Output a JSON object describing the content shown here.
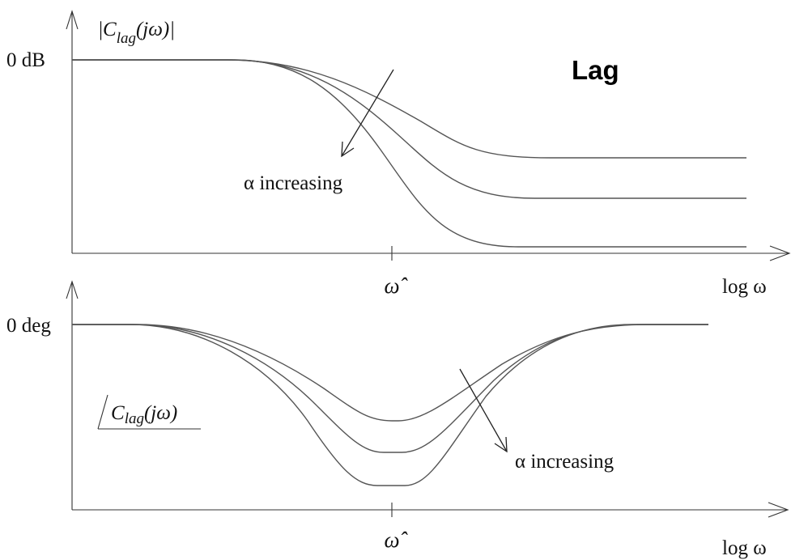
{
  "title": "Lag",
  "magnitude_plot": {
    "y_label_prefix": "|",
    "y_label_symbol": "C",
    "y_label_subscript": "lag",
    "y_label_argument": "(jω)|",
    "y_tick_label": "0 dB",
    "x_tick_label": "ω̂",
    "x_axis_label": "log ω",
    "annotation": "α increasing",
    "curve_count": 3
  },
  "phase_plot": {
    "y_label_symbol": "C",
    "y_label_subscript": "lag",
    "y_label_argument": "(jω)",
    "y_tick_label": "0 deg",
    "x_tick_label": "ω̂",
    "x_axis_label": "log ω",
    "annotation": "α increasing",
    "curve_count": 3
  }
}
